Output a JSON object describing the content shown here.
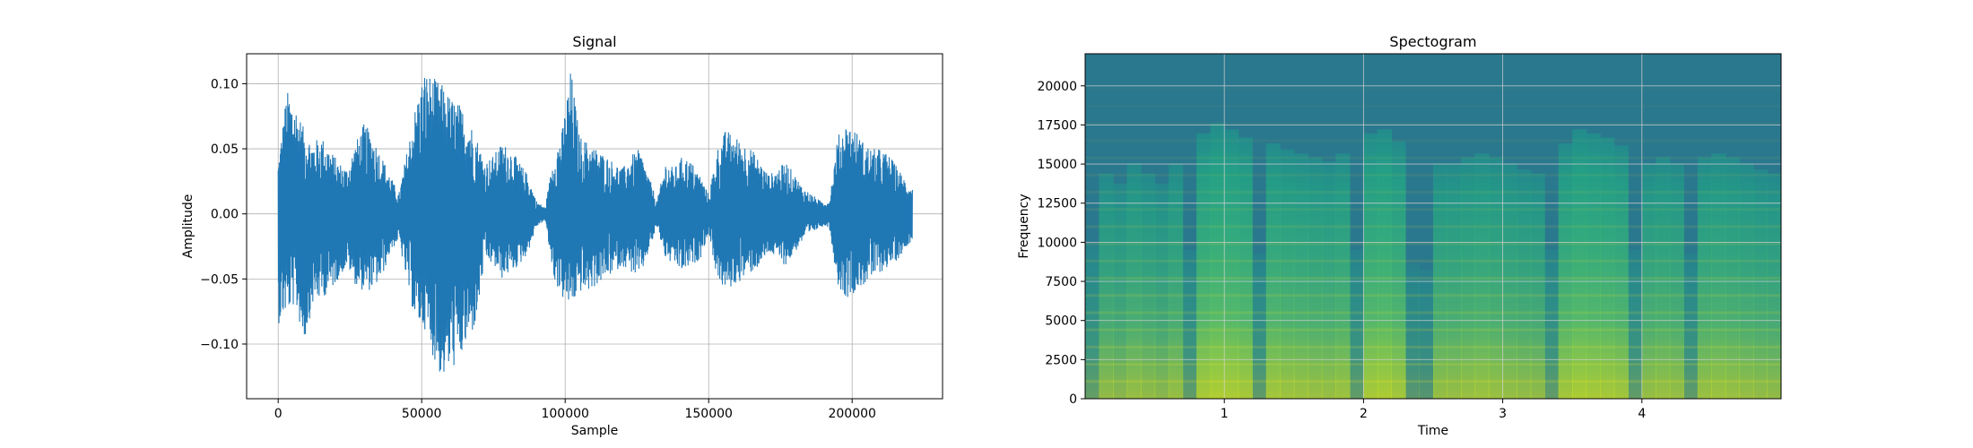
{
  "chart_data": [
    {
      "type": "line",
      "title": "Signal",
      "xlabel": "Sample",
      "ylabel": "Amplitude",
      "xlim": [
        -11000,
        231500
      ],
      "ylim": [
        -0.142,
        0.123
      ],
      "xticks": [
        0,
        50000,
        100000,
        150000,
        200000
      ],
      "xtick_labels": [
        "0",
        "50000",
        "100000",
        "150000",
        "200000"
      ],
      "yticks": [
        -0.1,
        -0.05,
        0.0,
        0.05,
        0.1
      ],
      "ytick_labels": [
        "−0.10",
        "−0.05",
        "0.00",
        "0.05",
        "0.10"
      ],
      "grid": true,
      "color": "#1f77b4",
      "series": [
        {
          "x": [
            0,
            3000,
            6000,
            9000,
            12000,
            15000,
            18000,
            21000,
            24000,
            27000,
            30000,
            33000,
            36000,
            39000,
            42000,
            45000,
            48000,
            51000,
            54000,
            57000,
            60000,
            63000,
            66000,
            69000,
            72000,
            75000,
            78000,
            81000,
            84000,
            87000,
            90000,
            93000,
            96000,
            99000,
            102000,
            105000,
            108000,
            111000,
            114000,
            117000,
            120000,
            123000,
            126000,
            129000,
            132000,
            135000,
            138000,
            141000,
            144000,
            147000,
            150000,
            153000,
            156000,
            159000,
            162000,
            165000,
            168000,
            171000,
            174000,
            177000,
            180000,
            183000,
            186000,
            189000,
            192000,
            195000,
            198000,
            201000,
            204000,
            207000,
            210000,
            213000,
            216000,
            219000,
            221000
          ],
          "ymax": [
            0.04,
            0.095,
            0.085,
            0.065,
            0.055,
            0.06,
            0.05,
            0.04,
            0.035,
            0.055,
            0.07,
            0.06,
            0.045,
            0.03,
            0.015,
            0.05,
            0.085,
            0.11,
            0.105,
            0.1,
            0.09,
            0.085,
            0.075,
            0.06,
            0.04,
            0.045,
            0.055,
            0.05,
            0.04,
            0.03,
            0.01,
            0.005,
            0.045,
            0.065,
            0.112,
            0.06,
            0.055,
            0.05,
            0.045,
            0.04,
            0.035,
            0.045,
            0.05,
            0.03,
            0.01,
            0.04,
            0.035,
            0.045,
            0.04,
            0.03,
            0.015,
            0.05,
            0.065,
            0.06,
            0.055,
            0.05,
            0.04,
            0.03,
            0.035,
            0.04,
            0.03,
            0.02,
            0.015,
            0.01,
            0.01,
            0.06,
            0.07,
            0.065,
            0.055,
            0.05,
            0.05,
            0.045,
            0.035,
            0.025,
            0.02
          ],
          "ymin": [
            -0.085,
            -0.075,
            -0.07,
            -0.1,
            -0.07,
            -0.065,
            -0.06,
            -0.05,
            -0.04,
            -0.055,
            -0.06,
            -0.058,
            -0.05,
            -0.03,
            -0.02,
            -0.055,
            -0.085,
            -0.088,
            -0.11,
            -0.128,
            -0.12,
            -0.115,
            -0.1,
            -0.085,
            -0.035,
            -0.04,
            -0.05,
            -0.045,
            -0.04,
            -0.03,
            -0.01,
            -0.005,
            -0.05,
            -0.065,
            -0.072,
            -0.06,
            -0.06,
            -0.055,
            -0.05,
            -0.045,
            -0.04,
            -0.045,
            -0.05,
            -0.03,
            -0.01,
            -0.035,
            -0.04,
            -0.045,
            -0.04,
            -0.035,
            -0.015,
            -0.05,
            -0.06,
            -0.055,
            -0.05,
            -0.045,
            -0.04,
            -0.03,
            -0.035,
            -0.04,
            -0.03,
            -0.02,
            -0.015,
            -0.01,
            -0.01,
            -0.055,
            -0.065,
            -0.06,
            -0.055,
            -0.05,
            -0.045,
            -0.04,
            -0.035,
            -0.025,
            -0.02
          ]
        }
      ]
    },
    {
      "type": "heatmap",
      "title": "Spectogram",
      "xlabel": "Time",
      "ylabel": "Frequency",
      "xlim": [
        0,
        5
      ],
      "ylim": [
        0,
        22050
      ],
      "xticks": [
        1,
        2,
        3,
        4
      ],
      "xtick_labels": [
        "1",
        "2",
        "3",
        "4"
      ],
      "yticks": [
        0,
        2500,
        5000,
        7500,
        10000,
        12500,
        15000,
        17500,
        20000
      ],
      "ytick_labels": [
        "0",
        "2500",
        "5000",
        "7500",
        "10000",
        "12500",
        "15000",
        "17500",
        "20000"
      ],
      "grid": true,
      "colormap": "viridis",
      "low_color": "#2a788e",
      "high_color": "#d2e21b",
      "time_activity": [
        0.15,
        0.5,
        0.45,
        0.55,
        0.5,
        0.45,
        0.55,
        0.12,
        0.7,
        0.75,
        0.72,
        0.68,
        0.1,
        0.65,
        0.62,
        0.6,
        0.58,
        0.56,
        0.6,
        0.12,
        0.7,
        0.72,
        0.66,
        0.05,
        0.02,
        0.55,
        0.55,
        0.58,
        0.6,
        0.58,
        0.55,
        0.52,
        0.5,
        0.12,
        0.65,
        0.72,
        0.7,
        0.68,
        0.64,
        0.12,
        0.55,
        0.58,
        0.55,
        0.1,
        0.58,
        0.6,
        0.58,
        0.55,
        0.52,
        0.5
      ]
    }
  ]
}
